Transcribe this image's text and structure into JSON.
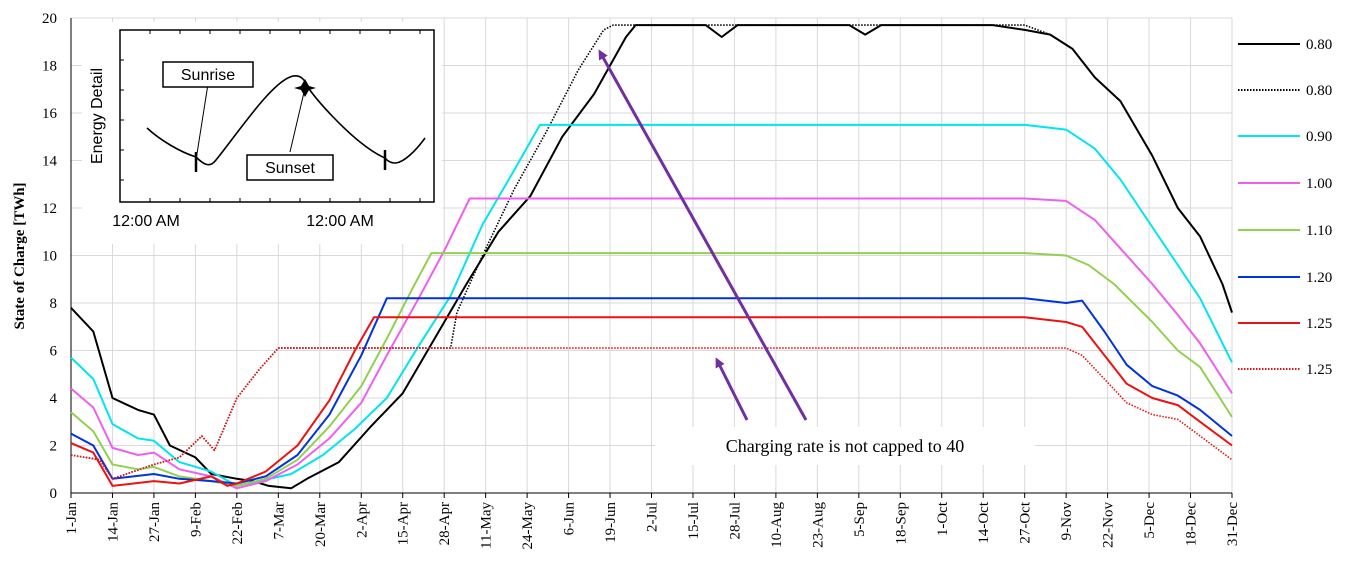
{
  "chart_data": {
    "type": "line",
    "ylabel": "State of Charge [TWh]",
    "ylim": [
      0,
      20
    ],
    "yticks": [
      0,
      2,
      4,
      6,
      8,
      10,
      12,
      14,
      16,
      18,
      20
    ],
    "x_tick_labels": [
      "1-Jan",
      "14-Jan",
      "27-Jan",
      "9-Feb",
      "22-Feb",
      "7-Mar",
      "20-Mar",
      "2-Apr",
      "15-Apr",
      "28-Apr",
      "11-May",
      "24-May",
      "6-Jun",
      "19-Jun",
      "2-Jul",
      "15-Jul",
      "28-Jul",
      "10-Aug",
      "23-Aug",
      "5-Sep",
      "18-Sep",
      "1-Oct",
      "14-Oct",
      "27-Oct",
      "9-Nov",
      "22-Nov",
      "5-Dec",
      "18-Dec",
      "31-Dec"
    ],
    "x_tick_days": [
      1,
      14,
      27,
      40,
      53,
      66,
      79,
      92,
      105,
      118,
      131,
      144,
      157,
      170,
      183,
      196,
      209,
      222,
      235,
      248,
      261,
      274,
      287,
      300,
      313,
      326,
      339,
      352,
      365
    ],
    "grid": true,
    "legend_position": "right",
    "series": [
      {
        "name": "0.80",
        "color": "#000000",
        "style": "solid",
        "points": [
          [
            1,
            7.8
          ],
          [
            8,
            6.8
          ],
          [
            14,
            4.0
          ],
          [
            22,
            3.5
          ],
          [
            27,
            3.3
          ],
          [
            32,
            2.0
          ],
          [
            40,
            1.5
          ],
          [
            45,
            0.8
          ],
          [
            53,
            0.6
          ],
          [
            58,
            0.5
          ],
          [
            63,
            0.3
          ],
          [
            70,
            0.2
          ],
          [
            75,
            0.6
          ],
          [
            85,
            1.3
          ],
          [
            95,
            2.8
          ],
          [
            105,
            4.2
          ],
          [
            115,
            6.5
          ],
          [
            125,
            8.8
          ],
          [
            135,
            11.0
          ],
          [
            145,
            12.5
          ],
          [
            155,
            15.0
          ],
          [
            165,
            16.8
          ],
          [
            175,
            19.2
          ],
          [
            178,
            19.7
          ],
          [
            200,
            19.7
          ],
          [
            205,
            19.2
          ],
          [
            210,
            19.7
          ],
          [
            245,
            19.7
          ],
          [
            250,
            19.3
          ],
          [
            255,
            19.7
          ],
          [
            290,
            19.7
          ],
          [
            300,
            19.5
          ],
          [
            308,
            19.3
          ],
          [
            315,
            18.7
          ],
          [
            322,
            17.5
          ],
          [
            330,
            16.5
          ],
          [
            340,
            14.2
          ],
          [
            348,
            12.0
          ],
          [
            355,
            10.8
          ],
          [
            362,
            8.8
          ],
          [
            365,
            7.6
          ]
        ]
      },
      {
        "name": "0.80",
        "color": "#000000",
        "style": "dotted",
        "points": [
          [
            1,
            1.6
          ],
          [
            10,
            1.4
          ],
          [
            14,
            0.6
          ],
          [
            27,
            1.2
          ],
          [
            35,
            1.5
          ],
          [
            42,
            2.4
          ],
          [
            46,
            1.8
          ],
          [
            53,
            4.0
          ],
          [
            60,
            5.2
          ],
          [
            66,
            6.1
          ],
          [
            120,
            6.1
          ],
          [
            122,
            7.6
          ],
          [
            130,
            10.0
          ],
          [
            140,
            12.8
          ],
          [
            150,
            15.2
          ],
          [
            160,
            17.8
          ],
          [
            168,
            19.5
          ],
          [
            171,
            19.7
          ],
          [
            300,
            19.7
          ],
          [
            308,
            19.3
          ],
          [
            315,
            18.7
          ],
          [
            322,
            17.5
          ],
          [
            330,
            16.5
          ],
          [
            340,
            14.2
          ],
          [
            348,
            12.0
          ],
          [
            355,
            10.8
          ],
          [
            362,
            8.8
          ],
          [
            365,
            7.6
          ]
        ]
      },
      {
        "name": "0.90",
        "color": "#00e5ee",
        "style": "solid",
        "points": [
          [
            1,
            5.7
          ],
          [
            8,
            4.8
          ],
          [
            14,
            2.9
          ],
          [
            22,
            2.3
          ],
          [
            27,
            2.2
          ],
          [
            35,
            1.3
          ],
          [
            45,
            0.9
          ],
          [
            53,
            0.3
          ],
          [
            60,
            0.5
          ],
          [
            70,
            0.8
          ],
          [
            80,
            1.6
          ],
          [
            90,
            2.7
          ],
          [
            100,
            4.0
          ],
          [
            110,
            6.2
          ],
          [
            120,
            8.3
          ],
          [
            130,
            11.3
          ],
          [
            140,
            13.6
          ],
          [
            148,
            15.5
          ],
          [
            300,
            15.5
          ],
          [
            313,
            15.3
          ],
          [
            322,
            14.5
          ],
          [
            330,
            13.2
          ],
          [
            340,
            11.2
          ],
          [
            348,
            9.6
          ],
          [
            355,
            8.2
          ],
          [
            365,
            5.5
          ]
        ]
      },
      {
        "name": "1.00",
        "color": "#ee5fee",
        "style": "solid",
        "points": [
          [
            1,
            4.4
          ],
          [
            8,
            3.6
          ],
          [
            14,
            1.9
          ],
          [
            22,
            1.6
          ],
          [
            27,
            1.7
          ],
          [
            35,
            1.0
          ],
          [
            45,
            0.7
          ],
          [
            53,
            0.2
          ],
          [
            62,
            0.5
          ],
          [
            72,
            1.2
          ],
          [
            82,
            2.3
          ],
          [
            92,
            3.8
          ],
          [
            100,
            5.8
          ],
          [
            110,
            8.2
          ],
          [
            118,
            10.2
          ],
          [
            126,
            12.4
          ],
          [
            300,
            12.4
          ],
          [
            313,
            12.3
          ],
          [
            322,
            11.5
          ],
          [
            330,
            10.3
          ],
          [
            340,
            8.8
          ],
          [
            348,
            7.5
          ],
          [
            355,
            6.3
          ],
          [
            365,
            4.2
          ]
        ]
      },
      {
        "name": "1.10",
        "color": "#92d050",
        "style": "solid",
        "points": [
          [
            1,
            3.4
          ],
          [
            8,
            2.6
          ],
          [
            14,
            1.2
          ],
          [
            22,
            1.0
          ],
          [
            27,
            1.1
          ],
          [
            35,
            0.7
          ],
          [
            45,
            0.5
          ],
          [
            53,
            0.3
          ],
          [
            62,
            0.6
          ],
          [
            72,
            1.4
          ],
          [
            82,
            2.8
          ],
          [
            92,
            4.5
          ],
          [
            100,
            6.5
          ],
          [
            108,
            8.6
          ],
          [
            114,
            10.1
          ],
          [
            300,
            10.1
          ],
          [
            313,
            10.0
          ],
          [
            320,
            9.6
          ],
          [
            328,
            8.8
          ],
          [
            340,
            7.2
          ],
          [
            348,
            6.0
          ],
          [
            355,
            5.3
          ],
          [
            365,
            3.2
          ]
        ]
      },
      {
        "name": "1.20",
        "color": "#0033dd",
        "style": "solid",
        "points": [
          [
            1,
            2.5
          ],
          [
            8,
            2.0
          ],
          [
            14,
            0.6
          ],
          [
            27,
            0.8
          ],
          [
            35,
            0.6
          ],
          [
            45,
            0.5
          ],
          [
            53,
            0.4
          ],
          [
            62,
            0.7
          ],
          [
            72,
            1.6
          ],
          [
            82,
            3.3
          ],
          [
            92,
            5.8
          ],
          [
            100,
            8.2
          ],
          [
            300,
            8.2
          ],
          [
            313,
            8.0
          ],
          [
            318,
            8.1
          ],
          [
            325,
            6.8
          ],
          [
            332,
            5.4
          ],
          [
            340,
            4.5
          ],
          [
            348,
            4.1
          ],
          [
            355,
            3.5
          ],
          [
            365,
            2.4
          ]
        ]
      },
      {
        "name": "1.25",
        "color": "#ee1111",
        "style": "solid",
        "points": [
          [
            1,
            2.1
          ],
          [
            8,
            1.7
          ],
          [
            14,
            0.3
          ],
          [
            27,
            0.5
          ],
          [
            35,
            0.4
          ],
          [
            45,
            0.7
          ],
          [
            50,
            0.3
          ],
          [
            53,
            0.4
          ],
          [
            62,
            0.9
          ],
          [
            72,
            2.0
          ],
          [
            82,
            3.9
          ],
          [
            90,
            6.0
          ],
          [
            96,
            7.4
          ],
          [
            300,
            7.4
          ],
          [
            313,
            7.2
          ],
          [
            318,
            7.0
          ],
          [
            325,
            5.8
          ],
          [
            332,
            4.6
          ],
          [
            340,
            4.0
          ],
          [
            348,
            3.7
          ],
          [
            355,
            3.0
          ],
          [
            365,
            2.0
          ]
        ]
      },
      {
        "name": "1.25",
        "color": "#ee1111",
        "style": "dotted",
        "points": [
          [
            1,
            1.6
          ],
          [
            10,
            1.4
          ],
          [
            14,
            0.6
          ],
          [
            27,
            1.2
          ],
          [
            35,
            1.5
          ],
          [
            42,
            2.4
          ],
          [
            46,
            1.8
          ],
          [
            53,
            4.0
          ],
          [
            60,
            5.2
          ],
          [
            66,
            6.1
          ],
          [
            313,
            6.1
          ],
          [
            318,
            5.8
          ],
          [
            325,
            4.8
          ],
          [
            332,
            3.8
          ],
          [
            340,
            3.3
          ],
          [
            348,
            3.1
          ],
          [
            355,
            2.4
          ],
          [
            365,
            1.4
          ]
        ]
      }
    ],
    "annotation": "Charging rate is not capped to 40"
  },
  "inset": {
    "ylabel": "Energy Detail",
    "xticks": [
      "12:00 AM",
      "12:00 AM"
    ],
    "callout_sunrise": "Sunrise",
    "callout_sunset": "Sunset"
  },
  "colors": {
    "arrow": "#7030a0",
    "grid": "#d9d9d9"
  }
}
